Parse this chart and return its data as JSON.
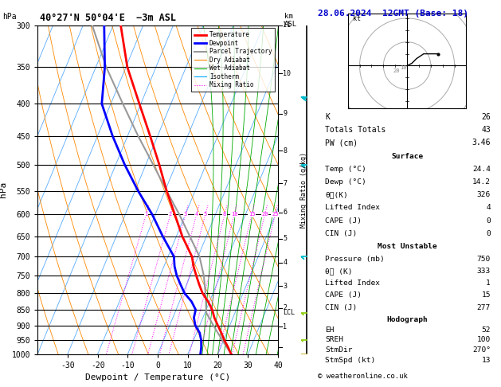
{
  "title_left": "40°27'N 50°04'E  −3m ASL",
  "title_right": "28.06.2024  12GMT (Base: 18)",
  "xlabel": "Dewpoint / Temperature (°C)",
  "pressure_levels": [
    300,
    350,
    400,
    450,
    500,
    550,
    600,
    650,
    700,
    750,
    800,
    850,
    900,
    950,
    1000
  ],
  "legend_entries": [
    {
      "label": "Temperature",
      "color": "#ff0000",
      "lw": 2.0,
      "ls": "-"
    },
    {
      "label": "Dewpoint",
      "color": "#0000ff",
      "lw": 2.0,
      "ls": "-"
    },
    {
      "label": "Parcel Trajectory",
      "color": "#999999",
      "lw": 1.5,
      "ls": "-"
    },
    {
      "label": "Dry Adiabat",
      "color": "#ff8800",
      "lw": 0.8,
      "ls": "-"
    },
    {
      "label": "Wet Adiabat",
      "color": "#00aa00",
      "lw": 0.8,
      "ls": "-"
    },
    {
      "label": "Isotherm",
      "color": "#00aaff",
      "lw": 0.8,
      "ls": "-"
    },
    {
      "label": "Mixing Ratio",
      "color": "#ff00ff",
      "lw": 0.8,
      "ls": ":"
    }
  ],
  "temperature_profile": {
    "pressure": [
      1000,
      975,
      950,
      925,
      900,
      875,
      850,
      825,
      800,
      775,
      750,
      725,
      700,
      650,
      600,
      550,
      500,
      450,
      400,
      350,
      300
    ],
    "temp": [
      24.4,
      22.4,
      20.2,
      18.2,
      16.0,
      13.8,
      12.0,
      9.5,
      6.5,
      4.2,
      2.0,
      -0.2,
      -2.0,
      -8.0,
      -13.5,
      -19.5,
      -25.5,
      -32.5,
      -40.5,
      -49.5,
      -57.5
    ]
  },
  "dewpoint_profile": {
    "pressure": [
      1000,
      975,
      950,
      925,
      900,
      875,
      850,
      825,
      800,
      775,
      750,
      725,
      700,
      650,
      600,
      550,
      500,
      450,
      400,
      350,
      300
    ],
    "dewp": [
      14.2,
      13.5,
      12.5,
      11.0,
      8.5,
      7.0,
      6.5,
      4.0,
      0.5,
      -2.0,
      -4.5,
      -6.5,
      -8.0,
      -14.5,
      -21.0,
      -29.0,
      -37.0,
      -45.0,
      -53.0,
      -57.0,
      -63.0
    ]
  },
  "parcel_profile": {
    "pressure": [
      1000,
      975,
      950,
      900,
      860,
      850,
      800,
      750,
      700,
      650,
      600,
      550,
      500,
      450,
      400,
      350,
      300
    ],
    "temp": [
      24.4,
      22.0,
      19.5,
      14.5,
      10.5,
      10.0,
      7.5,
      4.5,
      0.5,
      -5.5,
      -12.0,
      -19.5,
      -27.5,
      -36.5,
      -46.0,
      -56.5,
      -67.0
    ]
  },
  "mixing_ratio_lines": [
    1,
    2,
    3,
    4,
    5,
    8,
    10,
    15,
    20,
    25
  ],
  "lcl_pressure": 858,
  "km_tick_pressures": [
    975,
    905,
    845,
    780,
    715,
    655,
    595,
    535,
    475,
    415,
    358,
    300
  ],
  "km_tick_labels": [
    "",
    "1",
    "2",
    "3",
    "4",
    "5",
    "6",
    "7",
    "8",
    "9",
    "10",
    "11"
  ],
  "wind_barb_data": [
    {
      "pressure": 390,
      "color": "#00bbcc",
      "flag_count": 3,
      "half_count": 0
    },
    {
      "pressure": 500,
      "color": "#00bbcc",
      "flag_count": 2,
      "half_count": 1
    },
    {
      "pressure": 700,
      "color": "#00bbcc",
      "flag_count": 1,
      "half_count": 1
    },
    {
      "pressure": 860,
      "color": "#88cc00",
      "flag_count": 0,
      "half_count": 2
    },
    {
      "pressure": 950,
      "color": "#88cc00",
      "flag_count": 0,
      "half_count": 1
    },
    {
      "pressure": 1000,
      "color": "#ccaa00",
      "flag_count": 0,
      "half_count": 1
    }
  ],
  "stats_rows": [
    [
      "K",
      "26"
    ],
    [
      "Totals Totals",
      "43"
    ],
    [
      "PW (cm)",
      "3.46"
    ]
  ],
  "surface_rows": [
    [
      "Temp (°C)",
      "24.4"
    ],
    [
      "Dewp (°C)",
      "14.2"
    ],
    [
      "θᴄ(K)",
      "326"
    ],
    [
      "Lifted Index",
      "4"
    ],
    [
      "CAPE (J)",
      "0"
    ],
    [
      "CIN (J)",
      "0"
    ]
  ],
  "mu_rows": [
    [
      "Pressure (mb)",
      "750"
    ],
    [
      "θᴄ (K)",
      "333"
    ],
    [
      "Lifted Index",
      "1"
    ],
    [
      "CAPE (J)",
      "15"
    ],
    [
      "CIN (J)",
      "277"
    ]
  ],
  "hodo_rows": [
    [
      "EH",
      "52"
    ],
    [
      "SREH",
      "100"
    ],
    [
      "StmDir",
      "270°"
    ],
    [
      "StmSpd (kt)",
      "13"
    ]
  ]
}
